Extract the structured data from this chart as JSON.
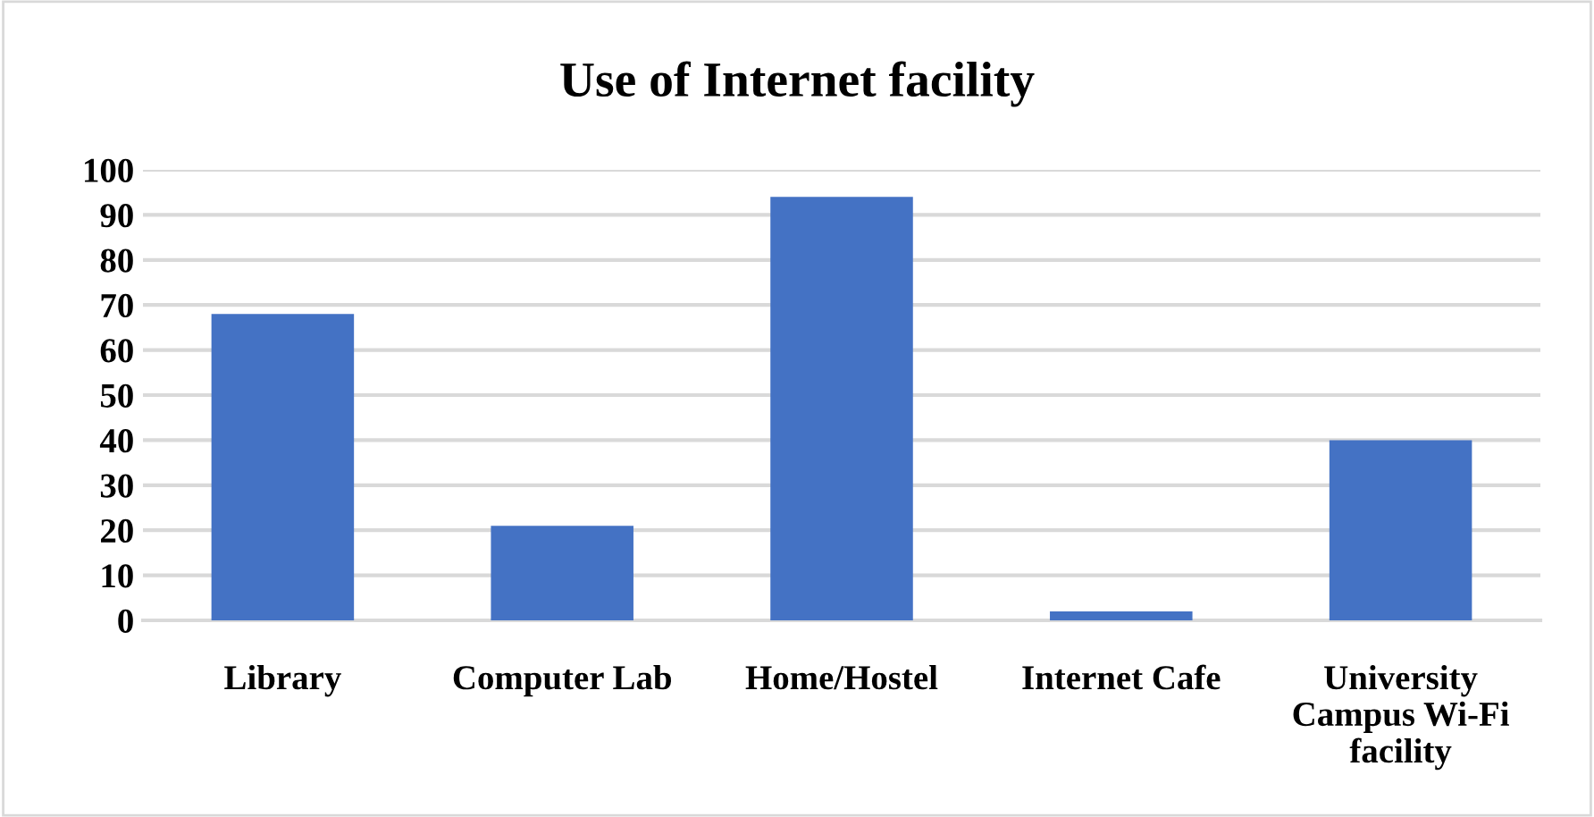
{
  "chart_data": {
    "type": "bar",
    "title": "Use of Internet facility",
    "categories": [
      "Library",
      "Computer Lab",
      "Home/Hostel",
      "Internet Cafe",
      "University\nCampus Wi-Fi\nfacility"
    ],
    "values": [
      68,
      21,
      94,
      2,
      40
    ],
    "color": "#4472c4",
    "ylim": [
      0,
      100
    ],
    "yticks": [
      0,
      10,
      20,
      30,
      40,
      50,
      60,
      70,
      80,
      90,
      100
    ],
    "grid": "y"
  }
}
